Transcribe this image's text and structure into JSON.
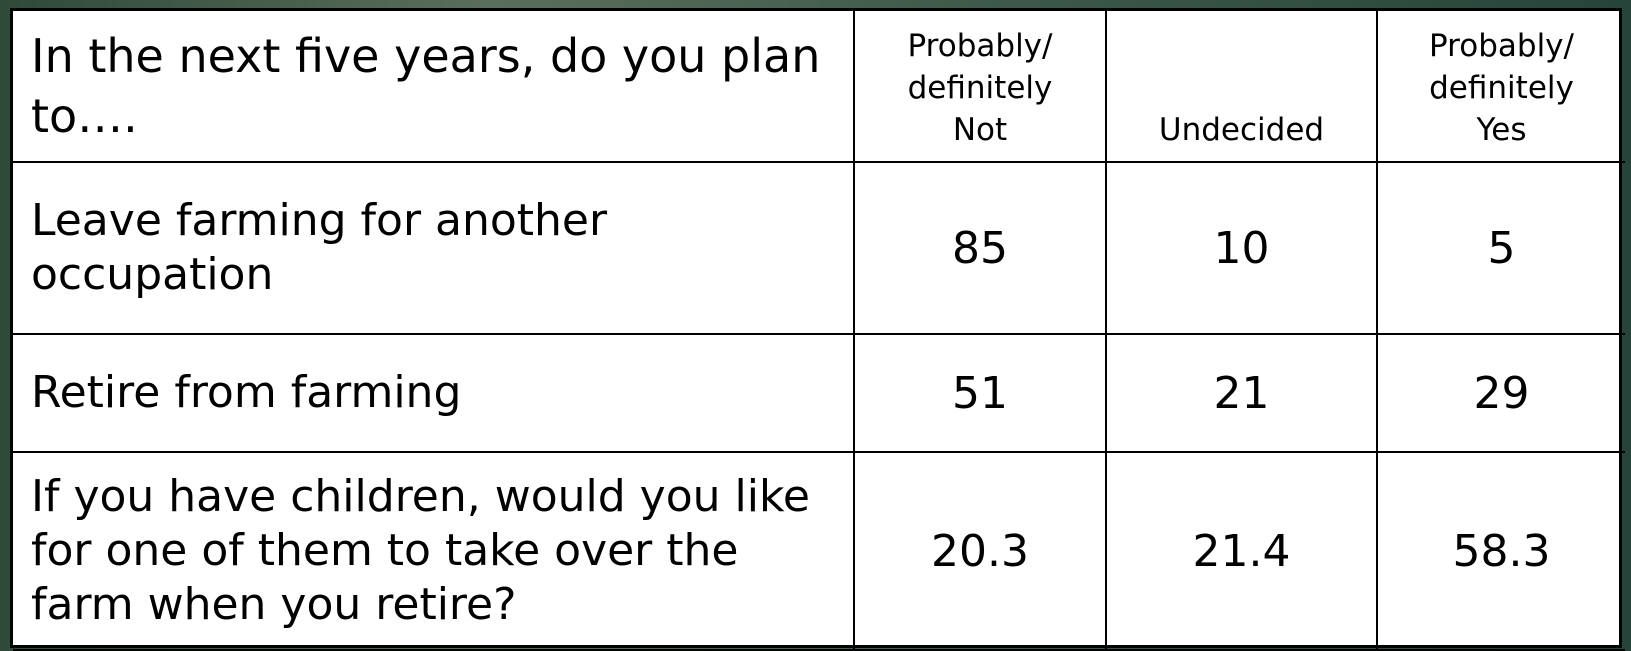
{
  "table": {
    "header": [
      "In the next five years, do you plan to….",
      "Probably/\ndefinitely\nNot",
      "Undecided",
      "Probably/\ndefinitely\nYes"
    ],
    "rows": [
      [
        "Leave farming for another occupation",
        "85",
        "10",
        "5"
      ],
      [
        "Retire from farming",
        "51",
        "21",
        "29"
      ],
      [
        "If you have children, would you like for one of them to take over the farm when you retire?",
        "20.3",
        "21.4",
        "58.3"
      ]
    ]
  }
}
